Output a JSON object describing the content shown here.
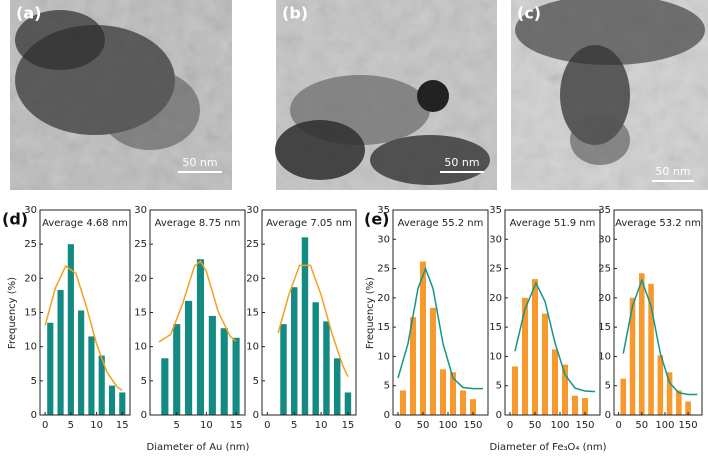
{
  "panels": [
    {
      "label": "(a)",
      "scale": "50 nm"
    },
    {
      "label": "(b)",
      "scale": "50 nm"
    },
    {
      "label": "(c)",
      "scale": "50 nm"
    }
  ],
  "groups": [
    {
      "label": "(d)",
      "xlabel": "Diameter of Au (nm)",
      "ylabel": "Frequency (%)"
    },
    {
      "label": "(e)",
      "xlabel": "Diameter of Fe₃O₄ (nm)",
      "ylabel": "Frequency (%)"
    }
  ],
  "chart_data": [
    {
      "type": "bar",
      "title": "Average 4.68 nm",
      "color": "#138a82",
      "x": [
        1,
        3,
        5,
        7,
        9,
        11,
        13,
        15
      ],
      "values": [
        13.5,
        18.3,
        25,
        15.3,
        11.5,
        8.7,
        4.3,
        3.3
      ],
      "fit": {
        "color": "#f5a01e",
        "x": [
          0,
          2,
          4,
          6,
          8,
          10,
          12,
          14,
          15
        ],
        "values": [
          13.1,
          18.6,
          21.8,
          20.7,
          15.9,
          10.4,
          6.3,
          4.1,
          3.6
        ]
      },
      "xlim": [
        -1,
        16.5
      ],
      "ylim": [
        0,
        30
      ],
      "xticks": [
        0,
        5,
        10,
        15
      ],
      "yticks": [
        0,
        5,
        10,
        15,
        20,
        25,
        30
      ]
    },
    {
      "type": "bar",
      "title": "Average 8.75 nm",
      "color": "#138a82",
      "x": [
        3,
        5,
        7,
        9,
        11,
        13,
        15
      ],
      "values": [
        8.3,
        13.3,
        16.7,
        22.8,
        14.5,
        12.7,
        11.3
      ],
      "fit": {
        "color": "#f5a01e",
        "x": [
          2,
          4,
          6,
          8,
          9,
          10,
          12,
          14,
          15
        ],
        "values": [
          10.7,
          11.8,
          16.3,
          21.8,
          22.5,
          21,
          15.1,
          11.5,
          10.8
        ]
      },
      "xlim": [
        0.5,
        16.5
      ],
      "ylim": [
        0,
        30
      ],
      "xticks": [
        5,
        10,
        15
      ],
      "yticks": [
        0,
        5,
        10,
        15,
        20,
        25,
        30
      ]
    },
    {
      "type": "bar",
      "title": "Average 7.05 nm",
      "color": "#138a82",
      "x": [
        3,
        5,
        7,
        9,
        11,
        13,
        15
      ],
      "values": [
        13.3,
        18.7,
        26,
        16.5,
        13.7,
        8.3,
        3.3
      ],
      "fit": {
        "color": "#f5a01e",
        "x": [
          2,
          4,
          6,
          8,
          10,
          12,
          14,
          15
        ],
        "values": [
          12,
          17.6,
          21.9,
          21.9,
          17.6,
          12,
          7.3,
          5.6
        ]
      },
      "xlim": [
        -1,
        16.5
      ],
      "ylim": [
        0,
        30
      ],
      "xticks": [
        0,
        5,
        10,
        15
      ],
      "yticks": [
        0,
        5,
        10,
        15,
        20,
        25,
        30
      ]
    },
    {
      "type": "bar",
      "title": "Average 55.2 nm",
      "color": "#f7992c",
      "x": [
        10,
        30,
        50,
        70,
        90,
        110,
        130,
        150
      ],
      "values": [
        4.2,
        16.7,
        26.2,
        18.3,
        7.8,
        7.3,
        4.2,
        2.7
      ],
      "fit": {
        "color": "#12958a",
        "x": [
          0,
          20,
          40,
          55,
          70,
          90,
          110,
          130,
          150,
          170
        ],
        "values": [
          6.3,
          12.2,
          21.6,
          25,
          21.6,
          12.2,
          6.3,
          4.7,
          4.5,
          4.5
        ]
      },
      "xlim": [
        -10,
        180
      ],
      "ylim": [
        0,
        35
      ],
      "xticks": [
        0,
        50,
        100,
        150
      ],
      "yticks": [
        0,
        5,
        10,
        15,
        20,
        25,
        30,
        35
      ]
    },
    {
      "type": "bar",
      "title": "Average 51.9 nm",
      "color": "#f7992c",
      "x": [
        10,
        30,
        50,
        70,
        90,
        110,
        130,
        150
      ],
      "values": [
        8.3,
        20,
        23.2,
        17.3,
        11.2,
        8.6,
        3.3,
        2.9
      ],
      "fit": {
        "color": "#12958a",
        "x": [
          10,
          30,
          52,
          70,
          90,
          110,
          130,
          150,
          170
        ],
        "values": [
          10.9,
          18.1,
          22.5,
          19.4,
          12.3,
          6.9,
          4.6,
          4.1,
          4
        ]
      },
      "xlim": [
        -10,
        180
      ],
      "ylim": [
        0,
        35
      ],
      "xticks": [
        0,
        50,
        100,
        150
      ],
      "yticks": [
        0,
        5,
        10,
        15,
        20,
        25,
        30,
        35
      ]
    },
    {
      "type": "bar",
      "title": "Average 53.2 nm",
      "color": "#f7992c",
      "x": [
        10,
        30,
        50,
        70,
        90,
        110,
        130,
        150
      ],
      "values": [
        6.2,
        20,
        24.2,
        22.4,
        10.2,
        7.3,
        4.2,
        2.3
      ],
      "fit": {
        "color": "#12958a",
        "x": [
          10,
          30,
          50,
          70,
          90,
          110,
          130,
          150,
          170
        ],
        "values": [
          10.5,
          18.6,
          23,
          18.6,
          10.5,
          5.5,
          3.8,
          3.5,
          3.5
        ]
      },
      "xlim": [
        -10,
        180
      ],
      "ylim": [
        0,
        35
      ],
      "xticks": [
        0,
        50,
        100,
        150
      ],
      "yticks": [
        0,
        5,
        10,
        15,
        20,
        25,
        30,
        35
      ]
    }
  ]
}
